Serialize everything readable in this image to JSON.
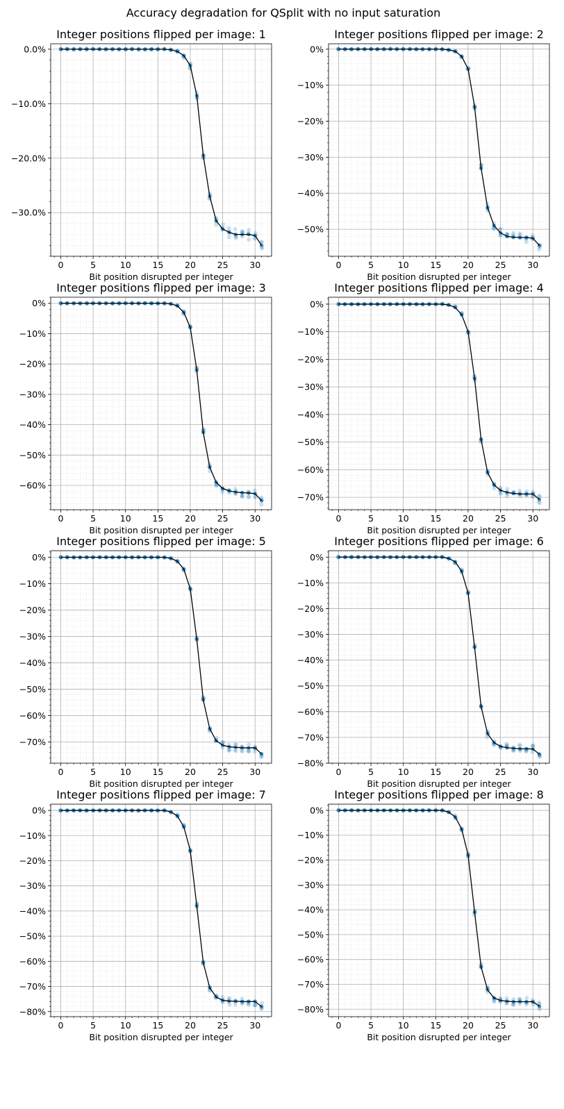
{
  "suptitle": "Accuracy degradation for QSplit with no input saturation",
  "colors": {
    "mean_line": "#000000",
    "trials": "#1f77b4",
    "grid_major": "#b0b0b0",
    "grid_minor": "#d8d8d8"
  },
  "chart_data": [
    {
      "type": "line",
      "title": "Integer positions flipped per image: 1",
      "xlabel": "Bit position disrupted per integer",
      "ylabel": "",
      "xlim": [
        -1.55,
        32.55
      ],
      "ylim": [
        -0.38,
        0.01
      ],
      "xticks": [
        0,
        5,
        10,
        15,
        20,
        25,
        30
      ],
      "yticks": [
        0,
        -0.1,
        -0.2,
        -0.3
      ],
      "ytick_labels": [
        "0.0%",
        "−10.0%",
        "−20.0%",
        "−30.0%"
      ],
      "x": [
        0,
        1,
        2,
        3,
        4,
        5,
        6,
        7,
        8,
        9,
        10,
        11,
        12,
        13,
        14,
        15,
        16,
        17,
        18,
        19,
        20,
        21,
        22,
        23,
        24,
        25,
        26,
        27,
        28,
        29,
        30,
        31
      ],
      "series": [
        {
          "values": [
            0,
            0,
            0,
            0,
            0,
            0,
            0,
            0,
            0,
            0,
            0,
            0,
            0,
            0,
            0,
            0,
            0,
            -0.001,
            -0.004,
            -0.012,
            -0.03,
            -0.085,
            -0.195,
            -0.27,
            -0.315,
            -0.33,
            -0.336,
            -0.34,
            -0.34,
            -0.34,
            -0.342,
            -0.36
          ]
        }
      ]
    },
    {
      "type": "line",
      "title": "Integer positions flipped per image: 2",
      "xlabel": "Bit position disrupted per integer",
      "ylabel": "",
      "xlim": [
        -1.55,
        32.55
      ],
      "ylim": [
        -0.575,
        0.015
      ],
      "xticks": [
        0,
        5,
        10,
        15,
        20,
        25,
        30
      ],
      "yticks": [
        0,
        -0.1,
        -0.2,
        -0.3,
        -0.4,
        -0.5
      ],
      "ytick_labels": [
        "0%",
        "−10%",
        "−20%",
        "−30%",
        "−40%",
        "−50%"
      ],
      "x": [
        0,
        1,
        2,
        3,
        4,
        5,
        6,
        7,
        8,
        9,
        10,
        11,
        12,
        13,
        14,
        15,
        16,
        17,
        18,
        19,
        20,
        21,
        22,
        23,
        24,
        25,
        26,
        27,
        28,
        29,
        30,
        31
      ],
      "series": [
        {
          "values": [
            0,
            0,
            0,
            0,
            0,
            0,
            0,
            0,
            0,
            0,
            0,
            0,
            0,
            0,
            0,
            0,
            0,
            -0.002,
            -0.006,
            -0.02,
            -0.055,
            -0.16,
            -0.33,
            -0.44,
            -0.49,
            -0.51,
            -0.52,
            -0.522,
            -0.523,
            -0.523,
            -0.525,
            -0.545
          ]
        }
      ]
    },
    {
      "type": "line",
      "title": "Integer positions flipped per image: 3",
      "xlabel": "Bit position disrupted per integer",
      "ylabel": "",
      "xlim": [
        -1.55,
        32.55
      ],
      "ylim": [
        -0.68,
        0.02
      ],
      "xticks": [
        0,
        5,
        10,
        15,
        20,
        25,
        30
      ],
      "yticks": [
        0,
        -0.1,
        -0.2,
        -0.3,
        -0.4,
        -0.5,
        -0.6
      ],
      "ytick_labels": [
        "0%",
        "−10%",
        "−20%",
        "−30%",
        "−40%",
        "−50%",
        "−60%"
      ],
      "x": [
        0,
        1,
        2,
        3,
        4,
        5,
        6,
        7,
        8,
        9,
        10,
        11,
        12,
        13,
        14,
        15,
        16,
        17,
        18,
        19,
        20,
        21,
        22,
        23,
        24,
        25,
        26,
        27,
        28,
        29,
        30,
        31
      ],
      "series": [
        {
          "values": [
            0,
            0,
            0,
            0,
            0,
            0,
            0,
            0,
            0,
            0,
            0,
            0,
            0,
            0,
            0,
            0,
            0,
            -0.002,
            -0.008,
            -0.03,
            -0.08,
            -0.22,
            -0.425,
            -0.54,
            -0.59,
            -0.61,
            -0.618,
            -0.622,
            -0.624,
            -0.625,
            -0.627,
            -0.65
          ]
        }
      ]
    },
    {
      "type": "line",
      "title": "Integer positions flipped per image: 4",
      "xlabel": "Bit position disrupted per integer",
      "ylabel": "",
      "xlim": [
        -1.55,
        32.55
      ],
      "ylim": [
        -0.745,
        0.025
      ],
      "xticks": [
        0,
        5,
        10,
        15,
        20,
        25,
        30
      ],
      "yticks": [
        0,
        -0.1,
        -0.2,
        -0.3,
        -0.4,
        -0.5,
        -0.6,
        -0.7
      ],
      "ytick_labels": [
        "0%",
        "−10%",
        "−20%",
        "−30%",
        "−40%",
        "−50%",
        "−60%",
        "−70%"
      ],
      "x": [
        0,
        1,
        2,
        3,
        4,
        5,
        6,
        7,
        8,
        9,
        10,
        11,
        12,
        13,
        14,
        15,
        16,
        17,
        18,
        19,
        20,
        21,
        22,
        23,
        24,
        25,
        26,
        27,
        28,
        29,
        30,
        31
      ],
      "series": [
        {
          "values": [
            0,
            0,
            0,
            0,
            0,
            0,
            0,
            0,
            0,
            0,
            0,
            0,
            0,
            0,
            0,
            0,
            0,
            -0.003,
            -0.012,
            -0.038,
            -0.1,
            -0.27,
            -0.49,
            -0.61,
            -0.655,
            -0.675,
            -0.682,
            -0.686,
            -0.688,
            -0.688,
            -0.688,
            -0.708
          ]
        }
      ]
    },
    {
      "type": "line",
      "title": "Integer positions flipped per image: 5",
      "xlabel": "Bit position disrupted per integer",
      "ylabel": "",
      "xlim": [
        -1.55,
        32.55
      ],
      "ylim": [
        -0.78,
        0.025
      ],
      "xticks": [
        0,
        5,
        10,
        15,
        20,
        25,
        30
      ],
      "yticks": [
        0,
        -0.1,
        -0.2,
        -0.3,
        -0.4,
        -0.5,
        -0.6,
        -0.7
      ],
      "ytick_labels": [
        "0%",
        "−10%",
        "−20%",
        "−30%",
        "−40%",
        "−50%",
        "−60%",
        "−70%"
      ],
      "x": [
        0,
        1,
        2,
        3,
        4,
        5,
        6,
        7,
        8,
        9,
        10,
        11,
        12,
        13,
        14,
        15,
        16,
        17,
        18,
        19,
        20,
        21,
        22,
        23,
        24,
        25,
        26,
        27,
        28,
        29,
        30,
        31
      ],
      "series": [
        {
          "values": [
            0,
            0,
            0,
            0,
            0,
            0,
            0,
            0,
            0,
            0,
            0,
            0,
            0,
            0,
            0,
            0,
            0,
            -0.004,
            -0.015,
            -0.045,
            -0.12,
            -0.31,
            -0.54,
            -0.65,
            -0.695,
            -0.712,
            -0.718,
            -0.72,
            -0.722,
            -0.722,
            -0.722,
            -0.745
          ]
        }
      ]
    },
    {
      "type": "line",
      "title": "Integer positions flipped per image: 6",
      "xlabel": "Bit position disrupted per integer",
      "ylabel": "",
      "xlim": [
        -1.55,
        32.55
      ],
      "ylim": [
        -0.8,
        0.025
      ],
      "xticks": [
        0,
        5,
        10,
        15,
        20,
        25,
        30
      ],
      "yticks": [
        0,
        -0.1,
        -0.2,
        -0.3,
        -0.4,
        -0.5,
        -0.6,
        -0.7,
        -0.8
      ],
      "ytick_labels": [
        "0%",
        "−10%",
        "−20%",
        "−30%",
        "−40%",
        "−50%",
        "−60%",
        "−70%",
        "−80%"
      ],
      "x": [
        0,
        1,
        2,
        3,
        4,
        5,
        6,
        7,
        8,
        9,
        10,
        11,
        12,
        13,
        14,
        15,
        16,
        17,
        18,
        19,
        20,
        21,
        22,
        23,
        24,
        25,
        26,
        27,
        28,
        29,
        30,
        31
      ],
      "series": [
        {
          "values": [
            0,
            0,
            0,
            0,
            0,
            0,
            0,
            0,
            0,
            0,
            0,
            0,
            0,
            0,
            0,
            0,
            0,
            -0.005,
            -0.018,
            -0.055,
            -0.14,
            -0.35,
            -0.58,
            -0.685,
            -0.72,
            -0.735,
            -0.74,
            -0.742,
            -0.744,
            -0.744,
            -0.745,
            -0.765
          ]
        }
      ]
    },
    {
      "type": "line",
      "title": "Integer positions flipped per image: 7",
      "xlabel": "Bit position disrupted per integer",
      "ylabel": "",
      "xlim": [
        -1.55,
        32.55
      ],
      "ylim": [
        -0.82,
        0.025
      ],
      "xticks": [
        0,
        5,
        10,
        15,
        20,
        25,
        30
      ],
      "yticks": [
        0,
        -0.1,
        -0.2,
        -0.3,
        -0.4,
        -0.5,
        -0.6,
        -0.7,
        -0.8
      ],
      "ytick_labels": [
        "0%",
        "−10%",
        "−20%",
        "−30%",
        "−40%",
        "−50%",
        "−60%",
        "−70%",
        "−80%"
      ],
      "x": [
        0,
        1,
        2,
        3,
        4,
        5,
        6,
        7,
        8,
        9,
        10,
        11,
        12,
        13,
        14,
        15,
        16,
        17,
        18,
        19,
        20,
        21,
        22,
        23,
        24,
        25,
        26,
        27,
        28,
        29,
        30,
        31
      ],
      "series": [
        {
          "values": [
            0,
            0,
            0,
            0,
            0,
            0,
            0,
            0,
            0,
            0,
            0,
            0,
            0,
            0,
            0,
            0,
            0,
            -0.006,
            -0.022,
            -0.065,
            -0.16,
            -0.38,
            -0.605,
            -0.705,
            -0.742,
            -0.755,
            -0.758,
            -0.759,
            -0.76,
            -0.76,
            -0.76,
            -0.78
          ]
        }
      ]
    },
    {
      "type": "line",
      "title": "Integer positions flipped per image: 8",
      "xlabel": "Bit position disrupted per integer",
      "ylabel": "",
      "xlim": [
        -1.55,
        32.55
      ],
      "ylim": [
        -0.83,
        0.025
      ],
      "xticks": [
        0,
        5,
        10,
        15,
        20,
        25,
        30
      ],
      "yticks": [
        0,
        -0.1,
        -0.2,
        -0.3,
        -0.4,
        -0.5,
        -0.6,
        -0.7,
        -0.8
      ],
      "ytick_labels": [
        "0%",
        "−10%",
        "−20%",
        "−30%",
        "−40%",
        "−50%",
        "−60%",
        "−70%",
        "−80%"
      ],
      "x": [
        0,
        1,
        2,
        3,
        4,
        5,
        6,
        7,
        8,
        9,
        10,
        11,
        12,
        13,
        14,
        15,
        16,
        17,
        18,
        19,
        20,
        21,
        22,
        23,
        24,
        25,
        26,
        27,
        28,
        29,
        30,
        31
      ],
      "series": [
        {
          "values": [
            0,
            0,
            0,
            0,
            0,
            0,
            0,
            0,
            0,
            0,
            0,
            0,
            0,
            0,
            0,
            0,
            0,
            -0.007,
            -0.026,
            -0.075,
            -0.18,
            -0.41,
            -0.63,
            -0.722,
            -0.755,
            -0.765,
            -0.768,
            -0.77,
            -0.77,
            -0.77,
            -0.77,
            -0.788
          ]
        }
      ]
    }
  ]
}
